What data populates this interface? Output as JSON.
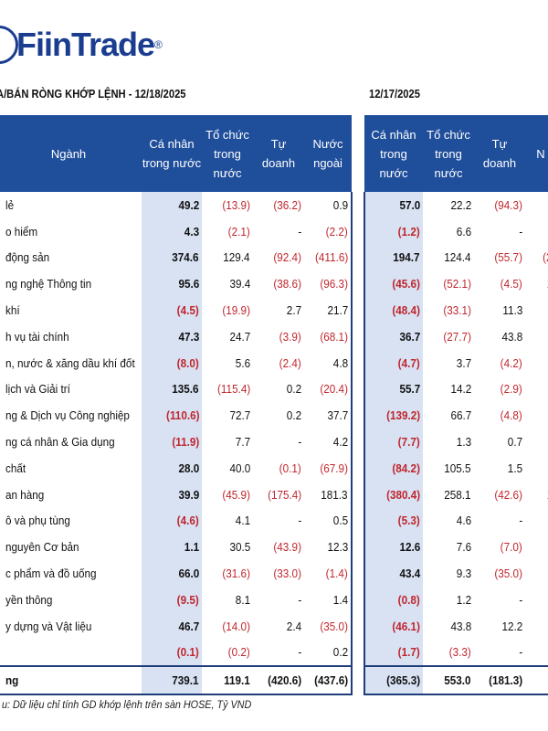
{
  "brand": {
    "name": "FiinTrade",
    "mark": "®"
  },
  "left": {
    "title": "A/BÁN RÒNG KHỚP LỆNH - 12/18/2025",
    "headers": [
      "Ngành",
      "Cá nhân trong nước",
      "Tổ chức trong nước",
      "Tự doanh",
      "Nước ngoài"
    ],
    "rows": [
      [
        "lẻ",
        "49.2",
        "(13.9)",
        "(36.2)",
        "0.9"
      ],
      [
        "o hiểm",
        "4.3",
        "(2.1)",
        "-",
        "(2.2)"
      ],
      [
        "động sản",
        "374.6",
        "129.4",
        "(92.4)",
        "(411.6)"
      ],
      [
        "ng nghệ Thông tin",
        "95.6",
        "39.4",
        "(38.6)",
        "(96.3)"
      ],
      [
        "khí",
        "(4.5)",
        "(19.9)",
        "2.7",
        "21.7"
      ],
      [
        "h vụ tài chính",
        "47.3",
        "24.7",
        "(3.9)",
        "(68.1)"
      ],
      [
        "n, nước & xăng dầu khí đốt",
        "(8.0)",
        "5.6",
        "(2.4)",
        "4.8"
      ],
      [
        "lịch và Giải trí",
        "135.6",
        "(115.4)",
        "0.2",
        "(20.4)"
      ],
      [
        "ng & Dịch vụ Công nghiệp",
        "(110.6)",
        "72.7",
        "0.2",
        "37.7"
      ],
      [
        "ng cá nhân & Gia dụng",
        "(11.9)",
        "7.7",
        "-",
        "4.2"
      ],
      [
        "chất",
        "28.0",
        "40.0",
        "(0.1)",
        "(67.9)"
      ],
      [
        "an hàng",
        "39.9",
        "(45.9)",
        "(175.4)",
        "181.3"
      ],
      [
        "ô và phụ tùng",
        "(4.6)",
        "4.1",
        "-",
        "0.5"
      ],
      [
        "nguyên Cơ bản",
        "1.1",
        "30.5",
        "(43.9)",
        "12.3"
      ],
      [
        "c phẩm và đồ uống",
        "66.0",
        "(31.6)",
        "(33.0)",
        "(1.4)"
      ],
      [
        "yền thông",
        "(9.5)",
        "8.1",
        "-",
        "1.4"
      ],
      [
        "y dựng và Vật liệu",
        "46.7",
        "(14.0)",
        "2.4",
        "(35.0)"
      ],
      [
        "",
        "(0.1)",
        "(0.2)",
        "-",
        "0.2"
      ]
    ],
    "total": [
      "ng",
      "739.1",
      "119.1",
      "(420.6)",
      "(437.6)"
    ]
  },
  "right": {
    "title": "12/17/2025",
    "headers": [
      "Cá nhân trong nước",
      "Tổ chức trong nước",
      "Tự doanh",
      "N"
    ],
    "rows": [
      [
        "57.0",
        "22.2",
        "(94.3)",
        ""
      ],
      [
        "(1.2)",
        "6.6",
        "-",
        ""
      ],
      [
        "194.7",
        "124.4",
        "(55.7)",
        "(2"
      ],
      [
        "(45.6)",
        "(52.1)",
        "(4.5)",
        "1"
      ],
      [
        "(48.4)",
        "(33.1)",
        "11.3",
        ""
      ],
      [
        "36.7",
        "(27.7)",
        "43.8",
        "("
      ],
      [
        "(4.7)",
        "3.7",
        "(4.2)",
        ""
      ],
      [
        "55.7",
        "14.2",
        "(2.9)",
        "("
      ],
      [
        "(139.2)",
        "66.7",
        "(4.8)",
        ""
      ],
      [
        "(7.7)",
        "1.3",
        "0.7",
        ""
      ],
      [
        "(84.2)",
        "105.5",
        "1.5",
        "("
      ],
      [
        "(380.4)",
        "258.1",
        "(42.6)",
        "1"
      ],
      [
        "(5.3)",
        "4.6",
        "-",
        ""
      ],
      [
        "12.6",
        "7.6",
        "(7.0)",
        "("
      ],
      [
        "43.4",
        "9.3",
        "(35.0)",
        "("
      ],
      [
        "(0.8)",
        "1.2",
        "-",
        ""
      ],
      [
        "(46.1)",
        "43.8",
        "12.2",
        "("
      ],
      [
        "(1.7)",
        "(3.3)",
        "-",
        ""
      ]
    ],
    "total": [
      "(365.3)",
      "553.0",
      "(181.3)",
      ""
    ]
  },
  "note": "u: Dữ liệu chỉ tính GD khớp lệnh trên sàn HOSE, Tỷ VND",
  "colors": {
    "header_bg": "#1f4e9b",
    "highlight": "#d8e2f3",
    "negative": "#c0262d"
  }
}
